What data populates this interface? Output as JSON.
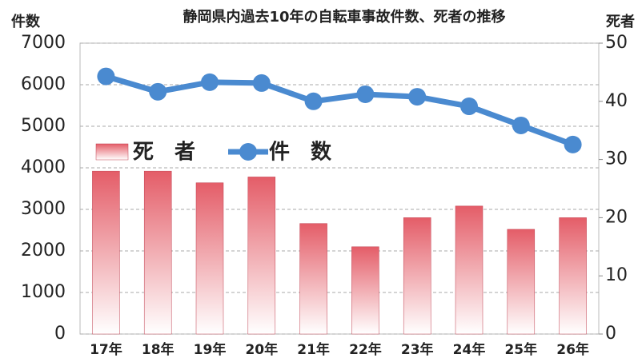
{
  "chart_data": {
    "type": "combo",
    "title": "静岡県内過去10年の自転車事故件数、死者の推移",
    "y_label": "件数",
    "y2_label": "死者",
    "categories": [
      "17年",
      "18年",
      "19年",
      "20年",
      "21年",
      "22年",
      "23年",
      "24年",
      "25年",
      "26年"
    ],
    "series": [
      {
        "name": "死　者",
        "type": "bar",
        "axis": "y2",
        "color": "#e45d68",
        "values": [
          28,
          28,
          26,
          27,
          19,
          15,
          20,
          22,
          18,
          20
        ]
      },
      {
        "name": "件　数",
        "type": "line",
        "color": "#4a8ad0",
        "values": [
          6200,
          5830,
          6060,
          6040,
          5600,
          5770,
          5710,
          5480,
          5020,
          4560
        ]
      }
    ],
    "ylim": [
      0,
      7000
    ],
    "yticks": [
      0,
      1000,
      2000,
      3000,
      4000,
      5000,
      6000,
      7000
    ],
    "y2lim": [
      0,
      50
    ],
    "y2ticks": [
      0,
      10,
      20,
      30,
      40,
      50
    ],
    "grid": true
  }
}
